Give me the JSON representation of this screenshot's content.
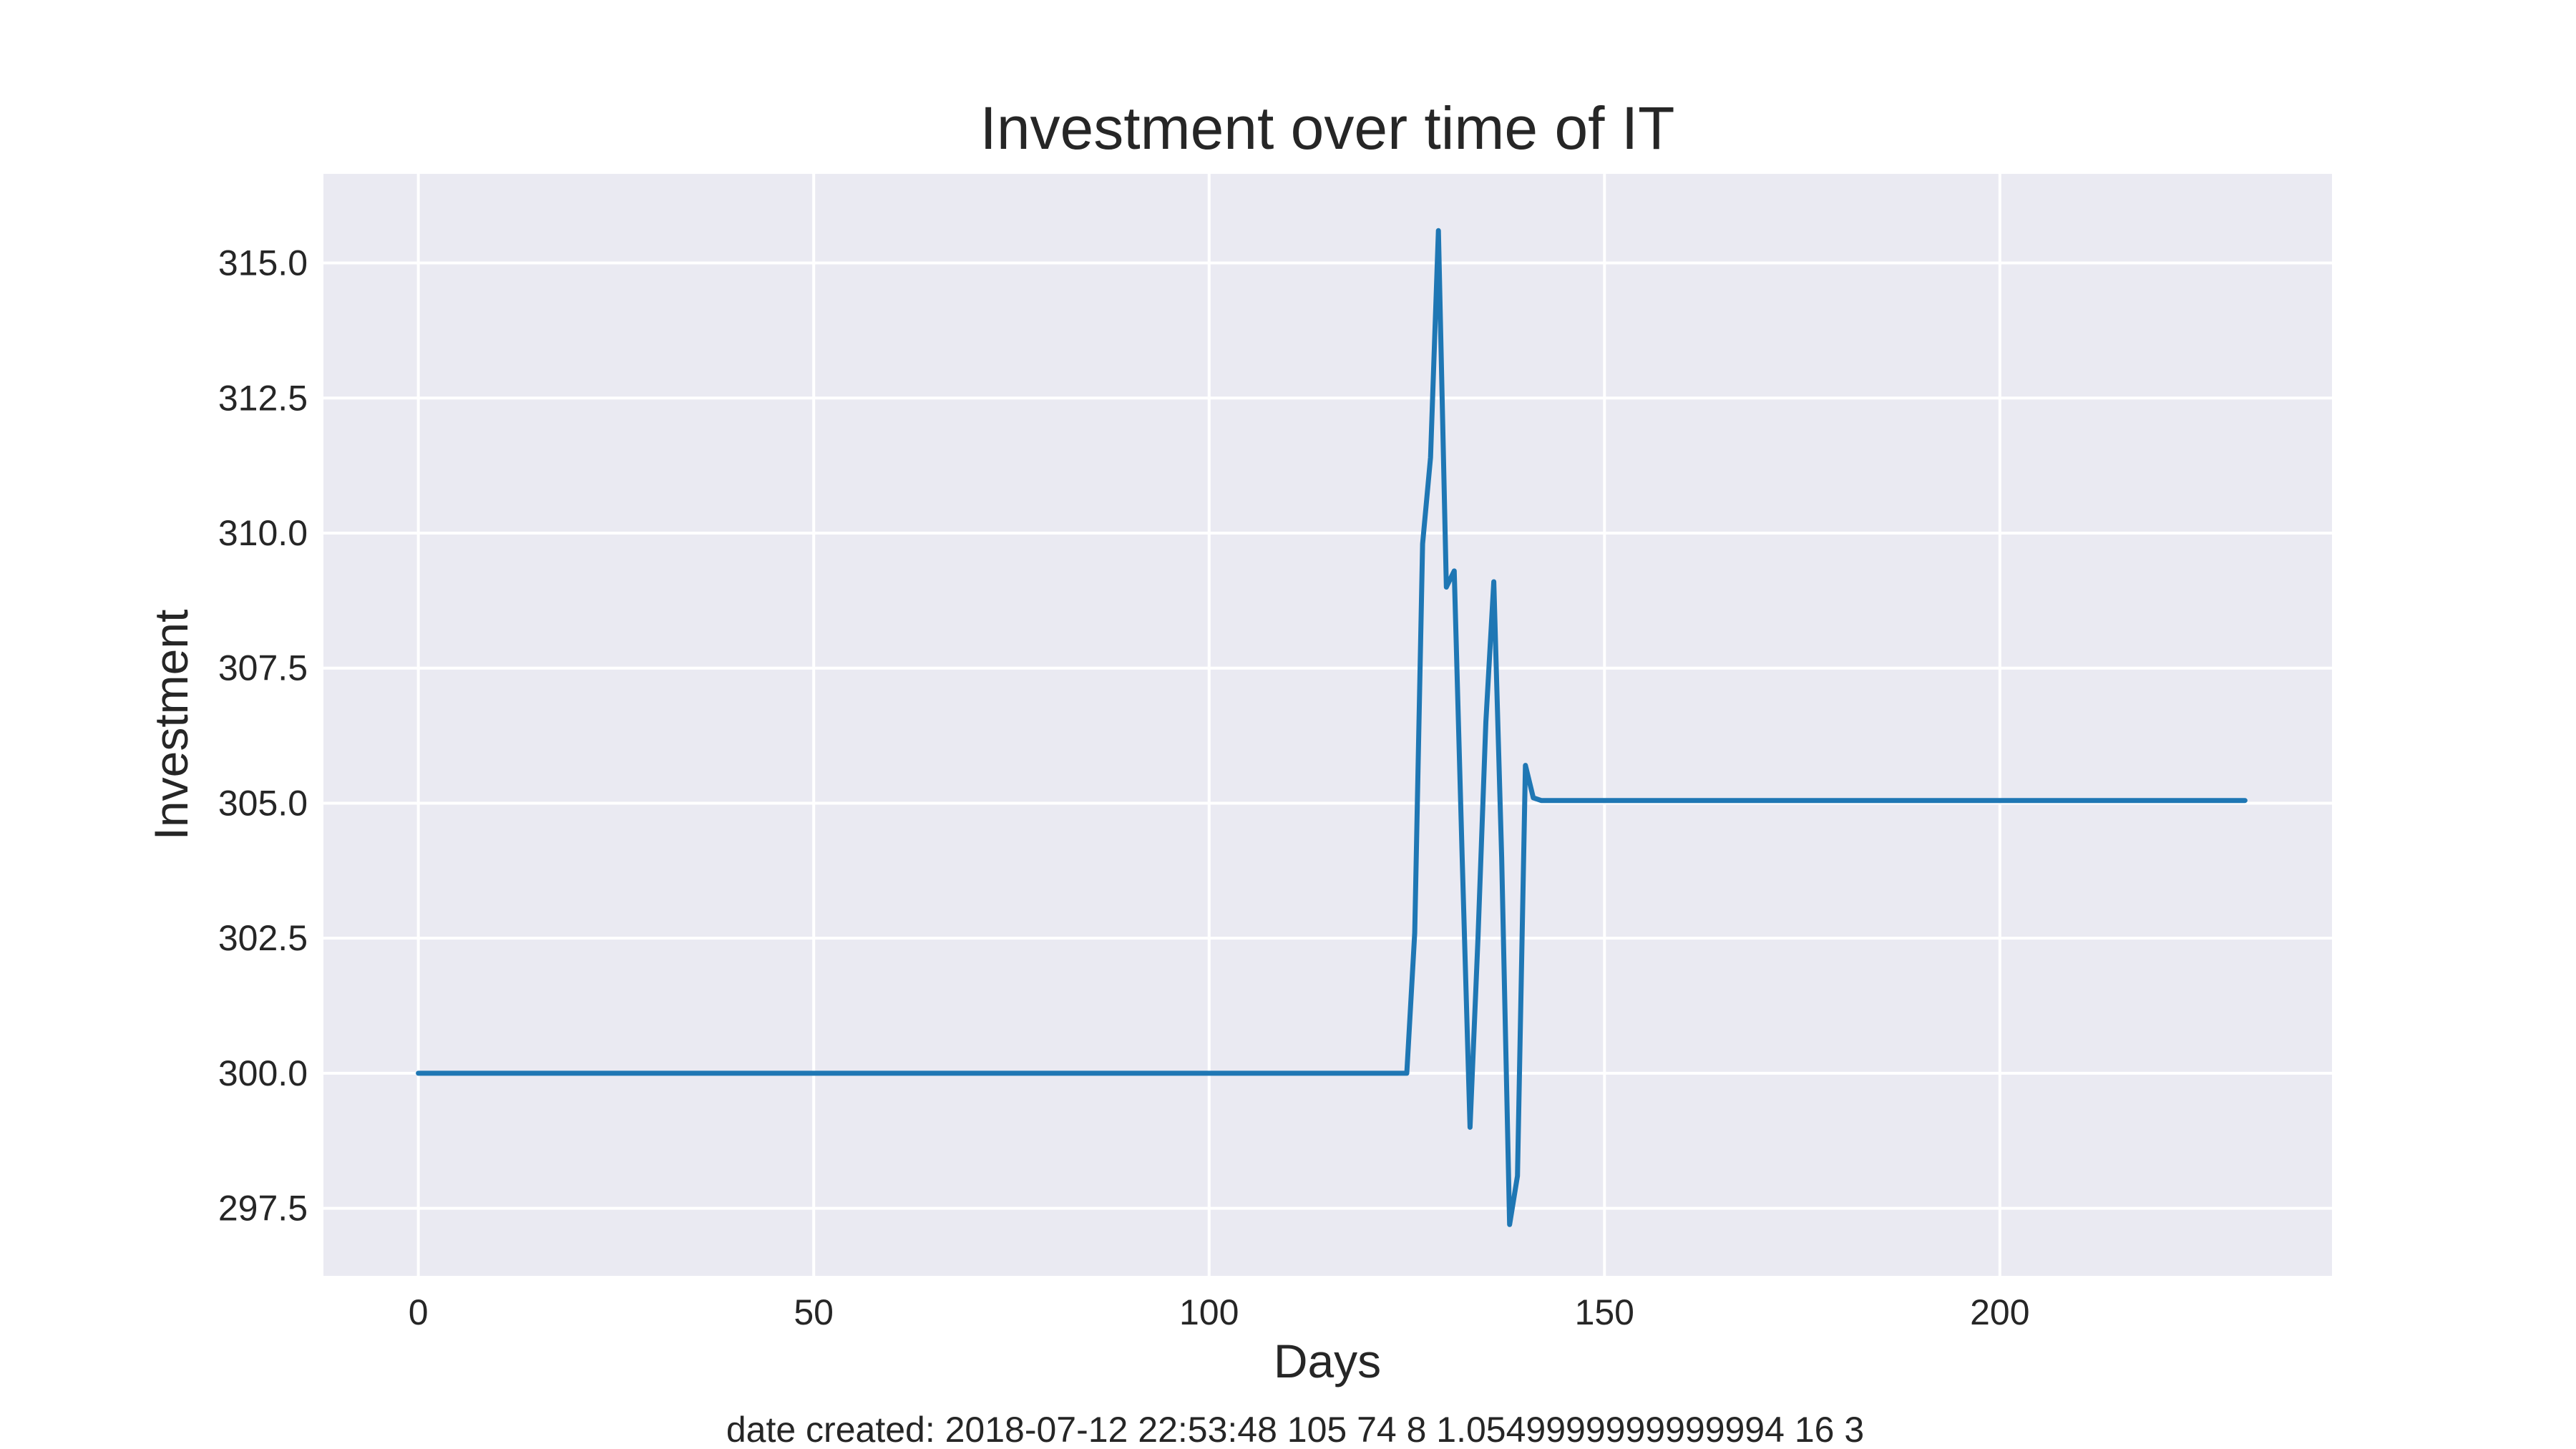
{
  "chart_data": {
    "type": "line",
    "title": "Investment over time of IT",
    "xlabel": "Days",
    "ylabel": "Investment",
    "xlim": [
      -12,
      242
    ],
    "ylim": [
      296.25,
      316.65
    ],
    "xticks": [
      0,
      50,
      100,
      150,
      200
    ],
    "xtick_labels": [
      "0",
      "50",
      "100",
      "150",
      "200"
    ],
    "yticks": [
      297.5,
      300.0,
      302.5,
      305.0,
      307.5,
      310.0,
      312.5,
      315.0
    ],
    "ytick_labels": [
      "297.5",
      "300.0",
      "302.5",
      "305.0",
      "307.5",
      "310.0",
      "312.5",
      "315.0"
    ],
    "grid": true,
    "colors": {
      "line": "#1f77b4",
      "plot_bg": "#eaeaf2",
      "grid": "#ffffff"
    },
    "series": [
      {
        "x": [
          0,
          125,
          126,
          127,
          128,
          129,
          130,
          131,
          132,
          133,
          134,
          135,
          136,
          137,
          138,
          139,
          140,
          141,
          142,
          231
        ],
        "y": [
          300.0,
          300.0,
          302.6,
          309.8,
          311.4,
          315.6,
          309.0,
          309.3,
          304.0,
          299.0,
          302.5,
          306.5,
          309.1,
          304.0,
          297.2,
          298.1,
          305.7,
          305.1,
          305.05,
          305.05
        ]
      }
    ]
  },
  "footer": "date created: 2018-07-12 22:53:48 105 74 8 1.0549999999999994 16 3"
}
